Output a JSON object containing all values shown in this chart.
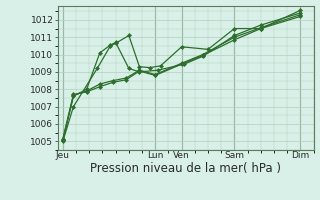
{
  "background_color": "#cce8dc",
  "plot_bg_color": "#d8f0e8",
  "grid_color": "#b0d0c0",
  "line_color": "#2d6e2d",
  "marker_color": "#2d6e2d",
  "ylim": [
    1004.5,
    1012.8
  ],
  "xlabel": "Pression niveau de la mer( hPa )",
  "xlabel_fontsize": 8.5,
  "tick_fontsize": 6.5,
  "x_day_labels": [
    "Jeu",
    "Lun",
    "Ven",
    "Sam",
    "Dim"
  ],
  "x_day_positions": [
    0.0,
    3.5,
    4.5,
    6.5,
    9.0
  ],
  "series1_x": [
    0.0,
    0.4,
    1.3,
    1.8,
    2.0,
    2.5,
    2.9,
    3.3,
    3.7,
    4.5,
    5.5,
    6.5,
    7.5,
    9.0
  ],
  "series1_y": [
    1005.0,
    1007.0,
    1009.2,
    1010.5,
    1010.65,
    1011.1,
    1009.3,
    1009.25,
    1009.35,
    1010.45,
    1010.3,
    1011.5,
    1011.5,
    1012.55
  ],
  "series2_x": [
    0.0,
    0.4,
    0.9,
    1.4,
    1.8,
    2.0,
    2.5,
    2.9,
    3.6,
    4.6,
    5.3,
    6.5,
    7.5,
    9.0
  ],
  "series2_y": [
    1005.05,
    1007.6,
    1008.0,
    1010.1,
    1010.55,
    1010.7,
    1009.2,
    1009.0,
    1009.1,
    1009.45,
    1009.9,
    1011.1,
    1011.7,
    1012.4
  ],
  "series3_x": [
    0.0,
    0.4,
    0.9,
    1.4,
    1.9,
    2.4,
    2.9,
    3.5,
    4.5,
    5.3,
    6.5,
    7.5,
    9.0
  ],
  "series3_y": [
    1005.1,
    1007.65,
    1007.9,
    1008.3,
    1008.5,
    1008.65,
    1009.1,
    1008.85,
    1009.5,
    1010.0,
    1011.0,
    1011.55,
    1012.3
  ],
  "series4_x": [
    0.0,
    0.4,
    0.9,
    1.4,
    1.9,
    2.4,
    2.9,
    3.5,
    4.5,
    5.3,
    6.5,
    7.5,
    9.0
  ],
  "series4_y": [
    1005.15,
    1007.7,
    1007.85,
    1008.15,
    1008.4,
    1008.55,
    1009.05,
    1008.8,
    1009.45,
    1009.95,
    1010.85,
    1011.5,
    1012.2
  ]
}
